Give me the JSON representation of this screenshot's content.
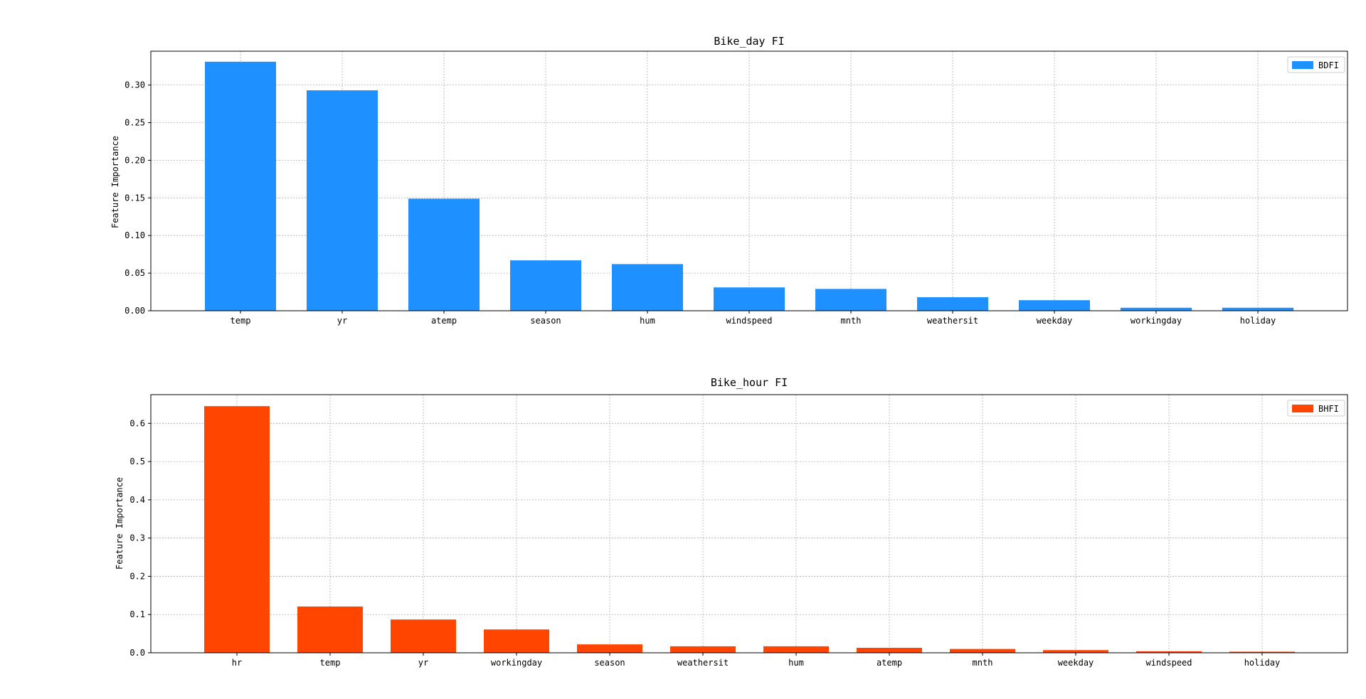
{
  "chart_data": [
    {
      "type": "bar",
      "title": "Bike_day FI",
      "xlabel": "",
      "ylabel": "Feature Importance",
      "ylim": [
        0,
        0.345
      ],
      "yticks": [
        "0.00",
        "0.05",
        "0.10",
        "0.15",
        "0.20",
        "0.25",
        "0.30"
      ],
      "grid": true,
      "legend_position": "top-right",
      "categories": [
        "temp",
        "yr",
        "atemp",
        "season",
        "hum",
        "windspeed",
        "mnth",
        "weathersit",
        "weekday",
        "workingday",
        "holiday"
      ],
      "series": [
        {
          "name": "BDFI",
          "color": "#1E90FF",
          "values": [
            0.331,
            0.293,
            0.149,
            0.067,
            0.062,
            0.031,
            0.029,
            0.018,
            0.014,
            0.004,
            0.004
          ]
        }
      ]
    },
    {
      "type": "bar",
      "title": "Bike_hour FI",
      "xlabel": "",
      "ylabel": "Feature Importance",
      "ylim": [
        0,
        0.675
      ],
      "yticks": [
        "0.0",
        "0.1",
        "0.2",
        "0.3",
        "0.4",
        "0.5",
        "0.6"
      ],
      "grid": true,
      "legend_position": "top-right",
      "categories": [
        "hr",
        "temp",
        "yr",
        "workingday",
        "season",
        "weathersit",
        "hum",
        "atemp",
        "mnth",
        "weekday",
        "windspeed",
        "holiday"
      ],
      "series": [
        {
          "name": "BHFI",
          "color": "#FF4500",
          "values": [
            0.645,
            0.121,
            0.087,
            0.061,
            0.022,
            0.017,
            0.017,
            0.013,
            0.01,
            0.007,
            0.004,
            0.002
          ]
        }
      ]
    }
  ]
}
